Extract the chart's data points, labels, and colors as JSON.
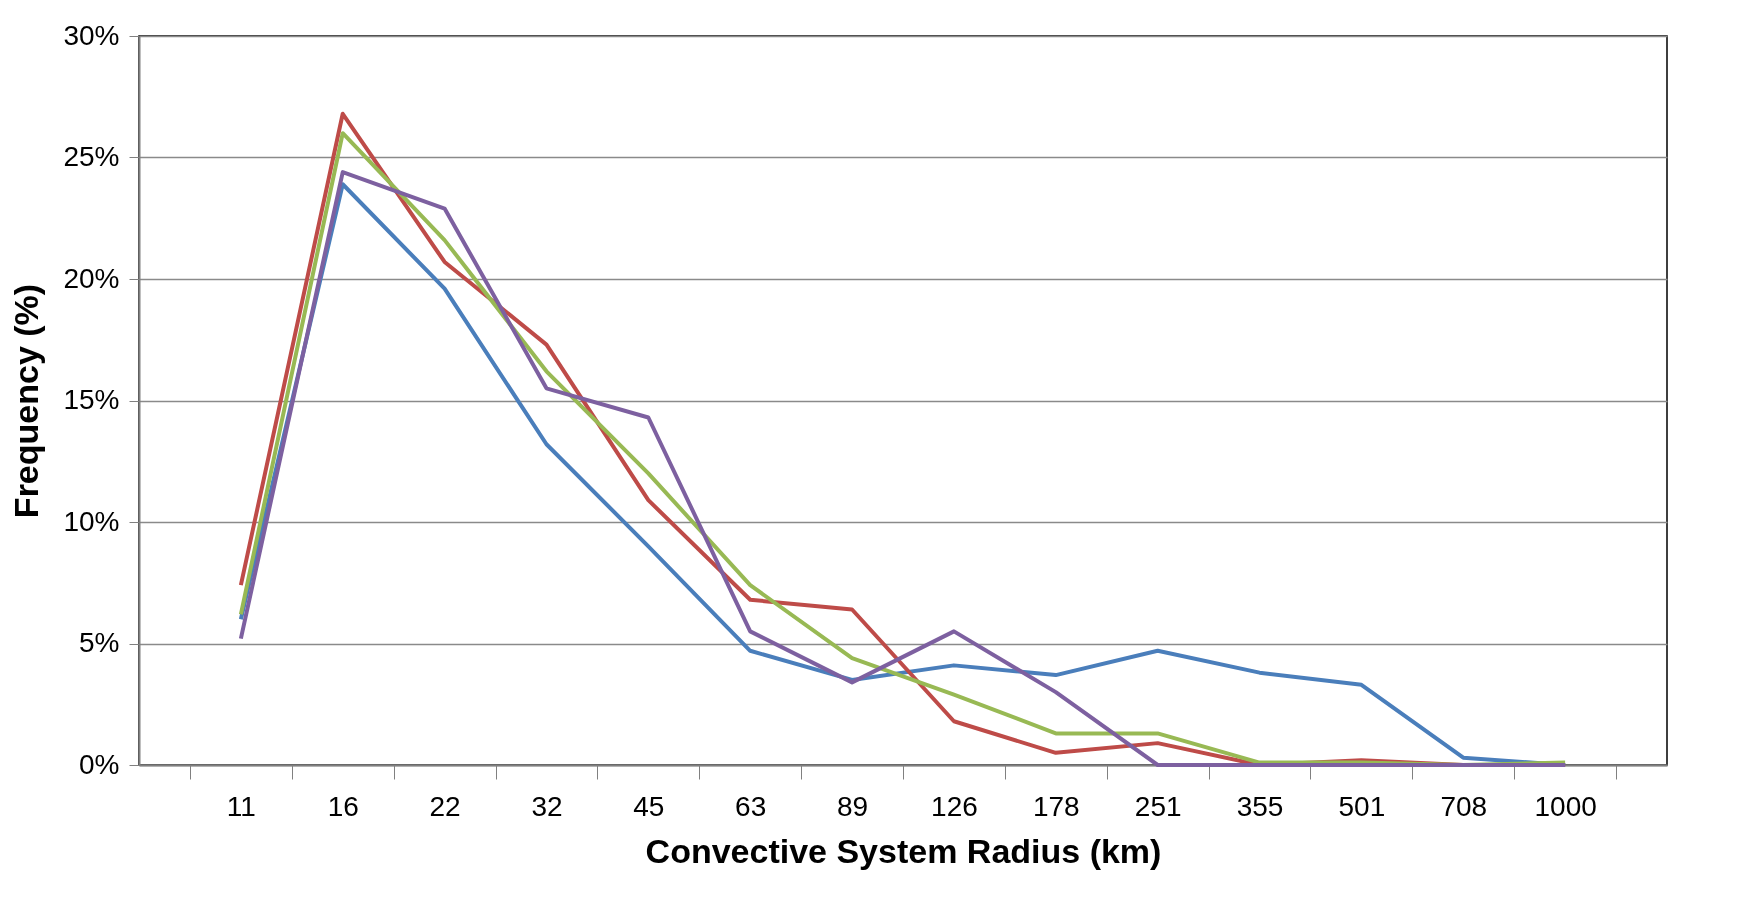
{
  "chart_data": {
    "type": "line",
    "xlabel": "Convective System Radius (km)",
    "ylabel": "Frequency (%)",
    "categories": [
      "11",
      "16",
      "22",
      "32",
      "45",
      "63",
      "89",
      "126",
      "178",
      "251",
      "355",
      "501",
      "708",
      "1000"
    ],
    "series": [
      {
        "color": "#4a7ebb",
        "values": [
          6.0,
          23.9,
          19.6,
          13.2,
          9.0,
          4.7,
          3.5,
          4.1,
          3.7,
          4.7,
          3.8,
          3.3,
          0.3,
          0.0
        ]
      },
      {
        "color": "#be4b48",
        "values": [
          7.4,
          26.8,
          20.7,
          17.3,
          10.9,
          6.8,
          6.4,
          1.8,
          0.5,
          0.9,
          0.0,
          0.2,
          0.0,
          0.0
        ]
      },
      {
        "color": "#98b954",
        "values": [
          6.2,
          26.0,
          21.6,
          16.2,
          12.0,
          7.4,
          4.4,
          2.9,
          1.3,
          1.3,
          0.1,
          0.1,
          0.0,
          0.1
        ]
      },
      {
        "color": "#7d60a0",
        "values": [
          5.2,
          24.4,
          22.9,
          15.5,
          14.3,
          5.5,
          3.4,
          5.5,
          3.0,
          0.0,
          0.0,
          0.0,
          0.0,
          0.0
        ]
      }
    ],
    "ylim": [
      0,
      30
    ],
    "yticks": [
      {
        "value": 0,
        "label": "0%"
      },
      {
        "value": 5,
        "label": "5%"
      },
      {
        "value": 10,
        "label": "10%"
      },
      {
        "value": 15,
        "label": "15%"
      },
      {
        "value": 20,
        "label": "20%"
      },
      {
        "value": 25,
        "label": "25%"
      },
      {
        "value": 30,
        "label": "30%"
      }
    ],
    "grid": "y",
    "legend": false,
    "marker": "none",
    "line_style": "solid"
  }
}
